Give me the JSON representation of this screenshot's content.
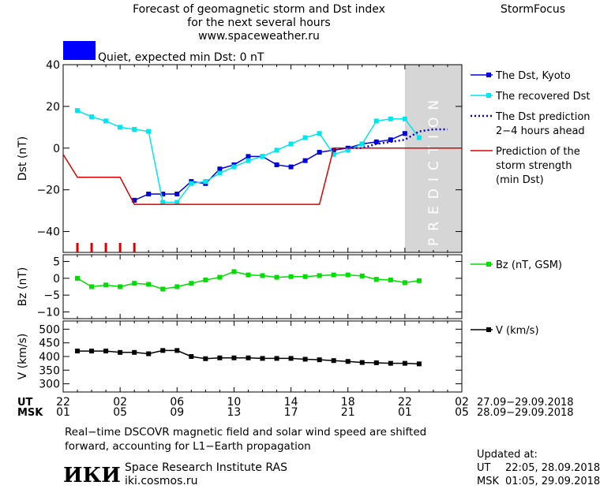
{
  "header": {
    "title_line1": "Forecast of geomagnetic storm and Dst index",
    "title_line2": "for the next several hours",
    "url": "www.spaceweather.ru",
    "brand": "StormFocus"
  },
  "status": {
    "text": "Quiet, expected min Dst: 0 nT",
    "color": "#0000ff"
  },
  "prediction_label": "PREDICTION",
  "footer": {
    "ut_label": "UT",
    "msk_label": "MSK",
    "ut_range": "27.09−29.09.2018",
    "msk_range": "28.09−29.09.2018",
    "note_line1": "Real−time DSCOVR magnetic field and solar wind speed are shifted",
    "note_line2": "forward, accounting for L1−Earth propagation",
    "institute_logo": "ИКИ",
    "institute_name": "Space Research Institute RAS",
    "institute_url": "iki.cosmos.ru",
    "updated_label": "Updated at:",
    "updated_ut_label": "UT",
    "updated_ut": "22:05, 28.09.2018",
    "updated_msk_label": "MSK",
    "updated_msk": "01:05, 29.09.2018"
  },
  "chart_data": [
    {
      "type": "line",
      "panel": "dst",
      "ylabel": "Dst (nT)",
      "ylim": [
        -50,
        40
      ],
      "yticks": [
        40,
        20,
        0,
        -20,
        -40
      ],
      "xlim": [
        22,
        50
      ],
      "x_ticks_ut": [
        "22",
        "02",
        "06",
        "10",
        "14",
        "18",
        "22",
        "02"
      ],
      "x_ticks_msk": [
        "01",
        "05",
        "09",
        "13",
        "17",
        "21",
        "01",
        "05"
      ],
      "x_tick_hours": [
        22,
        26,
        30,
        34,
        38,
        42,
        46,
        50
      ],
      "prediction_region": [
        46,
        50
      ],
      "red_bars_hours": [
        23,
        24,
        25,
        26,
        27
      ],
      "series": [
        {
          "name": "The Dst, Kyoto",
          "color": "#0000dd",
          "marker": "square",
          "x": [
            27,
            28,
            29,
            30,
            31,
            32,
            33,
            34,
            35,
            36,
            37,
            38,
            39,
            40,
            41,
            42,
            43,
            44,
            45,
            46
          ],
          "y": [
            -25,
            -22,
            -22,
            -22,
            -16,
            -17,
            -10,
            -8,
            -4,
            -4,
            -8,
            -9,
            -6,
            -2,
            -1,
            0,
            2,
            3,
            4,
            7
          ]
        },
        {
          "name": "The recovered Dst",
          "color": "#00e5ee",
          "marker": "square",
          "x": [
            23,
            24,
            25,
            26,
            27,
            28,
            29,
            30,
            31,
            32,
            33,
            34,
            35,
            36,
            37,
            38,
            39,
            40,
            41,
            42,
            43,
            44,
            45,
            46,
            47
          ],
          "y": [
            18,
            15,
            13,
            10,
            9,
            8,
            -26,
            -26,
            -17,
            -16,
            -12,
            -9,
            -6,
            -4,
            -1,
            2,
            5,
            7,
            -3,
            -1,
            2,
            13,
            14,
            14,
            5
          ]
        },
        {
          "name": "The Dst prediction 2−4 hours ahead",
          "color": "#0000cc",
          "style": "dotted",
          "x": [
            42,
            43,
            44,
            45,
            46,
            47,
            48,
            49
          ],
          "y": [
            0,
            0,
            2,
            3,
            4,
            8,
            9,
            9
          ]
        },
        {
          "name": "Prediction of the storm strength (min Dst)",
          "color": "#dd0000",
          "style": "step",
          "x": [
            22,
            23,
            26,
            27,
            40,
            41,
            42,
            50
          ],
          "y": [
            -3,
            -14,
            -14,
            -27,
            -27,
            0,
            0,
            0
          ]
        }
      ]
    },
    {
      "type": "line",
      "panel": "bz",
      "ylabel": "Bz (nT)",
      "ylim": [
        -12,
        7
      ],
      "yticks": [
        5,
        0,
        -5,
        -10
      ],
      "xlim": [
        22,
        50
      ],
      "series": [
        {
          "name": "Bz (nT, GSM)",
          "color": "#00dd00",
          "marker": "square",
          "x": [
            23,
            24,
            25,
            26,
            27,
            28,
            29,
            30,
            31,
            32,
            33,
            34,
            35,
            36,
            37,
            38,
            39,
            40,
            41,
            42,
            43,
            44,
            45,
            46,
            47
          ],
          "y": [
            0,
            -2.5,
            -2,
            -2.5,
            -1.5,
            -1.8,
            -3.2,
            -2.5,
            -1.5,
            -0.5,
            0.3,
            2,
            1,
            0.8,
            0.3,
            0.5,
            0.5,
            0.8,
            1,
            1,
            0.7,
            -0.3,
            -0.5,
            -1.3,
            -0.7
          ]
        }
      ]
    },
    {
      "type": "line",
      "panel": "v",
      "ylabel": "V (km/s)",
      "ylim": [
        270,
        530
      ],
      "yticks": [
        500,
        450,
        400,
        350,
        300
      ],
      "xlim": [
        22,
        50
      ],
      "series": [
        {
          "name": "V (km/s)",
          "color": "#000000",
          "marker": "square",
          "x": [
            23,
            24,
            25,
            26,
            27,
            28,
            29,
            30,
            31,
            32,
            33,
            34,
            35,
            36,
            37,
            38,
            39,
            40,
            41,
            42,
            43,
            44,
            45,
            46,
            47
          ],
          "y": [
            420,
            420,
            420,
            415,
            415,
            410,
            422,
            422,
            400,
            392,
            395,
            395,
            395,
            393,
            393,
            393,
            390,
            388,
            385,
            382,
            378,
            377,
            375,
            375,
            373
          ]
        }
      ]
    }
  ]
}
